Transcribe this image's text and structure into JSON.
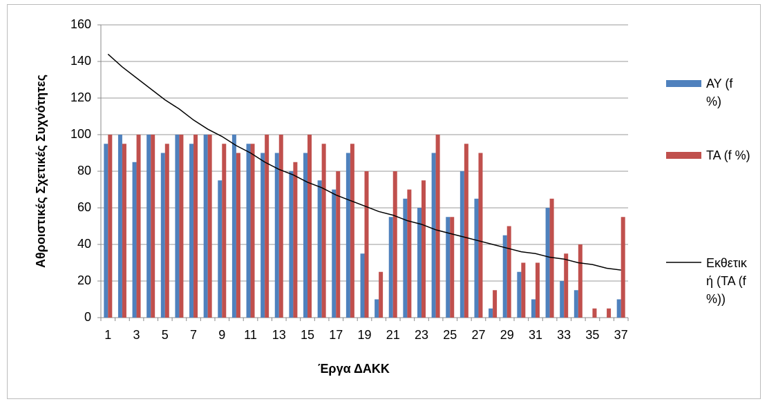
{
  "chart_data": {
    "type": "bar",
    "x_label": "Έργα ΔΑΚΚ",
    "y_label": "Αθροιστικές Σχετικές Συχνότητες",
    "categories": [
      "1",
      null,
      "3",
      null,
      "5",
      null,
      "7",
      null,
      "9",
      null,
      "11",
      null,
      "13",
      null,
      "15",
      null,
      "17",
      null,
      "19",
      null,
      "21",
      null,
      "23",
      null,
      "25",
      null,
      "27",
      null,
      "29",
      null,
      "31",
      null,
      "33",
      null,
      "35",
      null,
      "37"
    ],
    "series": [
      {
        "name": "ΑΥ (f %)",
        "color": "#4f81bd",
        "values": [
          95,
          100,
          85,
          100,
          90,
          100,
          95,
          100,
          75,
          100,
          95,
          90,
          90,
          80,
          90,
          75,
          70,
          90,
          35,
          10,
          55,
          65,
          60,
          90,
          55,
          80,
          65,
          5,
          45,
          25,
          10,
          60,
          20,
          15,
          0,
          0,
          10
        ]
      },
      {
        "name": "ΤΑ (f %)",
        "color": "#c0504d",
        "values": [
          100,
          95,
          100,
          100,
          95,
          100,
          100,
          100,
          95,
          90,
          95,
          100,
          100,
          85,
          100,
          95,
          80,
          95,
          80,
          25,
          80,
          70,
          75,
          100,
          55,
          95,
          90,
          15,
          50,
          30,
          30,
          65,
          35,
          40,
          5,
          5,
          55
        ]
      },
      {
        "name": "Εκθετική (ΤΑ (f %))",
        "color": "#000000",
        "type": "line",
        "values": [
          144,
          137,
          131,
          125,
          119,
          114,
          108,
          103,
          99,
          94,
          90,
          85,
          81,
          78,
          74,
          71,
          67,
          64,
          61,
          58,
          56,
          53,
          51,
          48,
          46,
          44,
          42,
          40,
          38,
          36,
          35,
          33,
          32,
          30,
          29,
          27,
          26
        ]
      }
    ],
    "ylim": [
      0,
      160
    ],
    "yticks": [
      0,
      20,
      40,
      60,
      80,
      100,
      120,
      140,
      160
    ],
    "grid": true,
    "legend": "right"
  }
}
